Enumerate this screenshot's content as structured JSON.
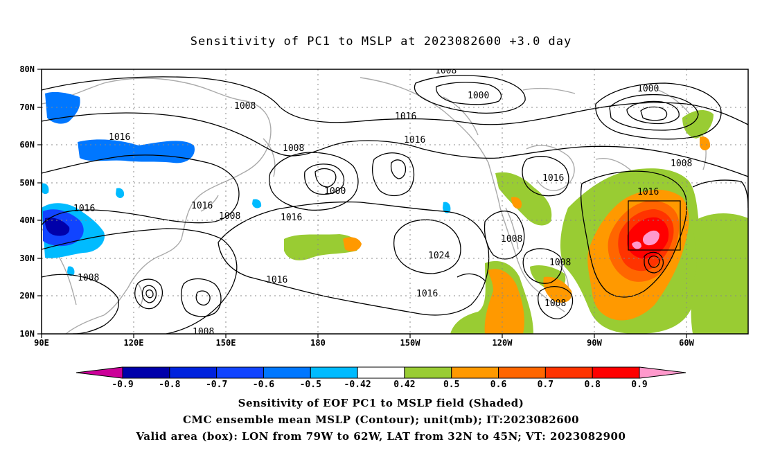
{
  "title": "Sensitivity of PC1 to MSLP at 2023082600 +3.0 day",
  "lat_ticks": [
    "80N",
    "70N",
    "60N",
    "50N",
    "40N",
    "30N",
    "20N",
    "10N"
  ],
  "lon_ticks": [
    "90E",
    "120E",
    "150E",
    "180",
    "150W",
    "120W",
    "90W",
    "60W"
  ],
  "contour_labels": [
    "1008",
    "1000",
    "1000",
    "1016",
    "1016",
    "1008",
    "1016",
    "1008",
    "1000",
    "1016",
    "1016",
    "1008",
    "1016",
    "1016",
    "1008",
    "1016",
    "1024",
    "1008",
    "1008",
    "1016",
    "1008",
    "1008",
    "1016",
    "1008"
  ],
  "colorbar_labels": [
    "-0.9",
    "-0.8",
    "-0.7",
    "-0.6",
    "-0.5",
    "-0.42",
    "0.42",
    "0.5",
    "0.6",
    "0.7",
    "0.8",
    "0.9"
  ],
  "colorbar_colors": [
    "#cc0099",
    "#0000aa",
    "#0022dd",
    "#1144ff",
    "#0077ff",
    "#00bbff",
    "#ffffff",
    "#99cc33",
    "#ff9900",
    "#ff6600",
    "#ff3300",
    "#ff0000",
    "#ff99cc"
  ],
  "footer": {
    "line1": "Sensitivity of EOF PC1 to MSLP field (Shaded)",
    "line2": "CMC ensemble mean MSLP (Contour); unit(mb); IT:2023082600",
    "line3": "Valid area (box): LON from 79W to 62W, LAT from 32N to 45N; VT: 2023082900"
  }
}
